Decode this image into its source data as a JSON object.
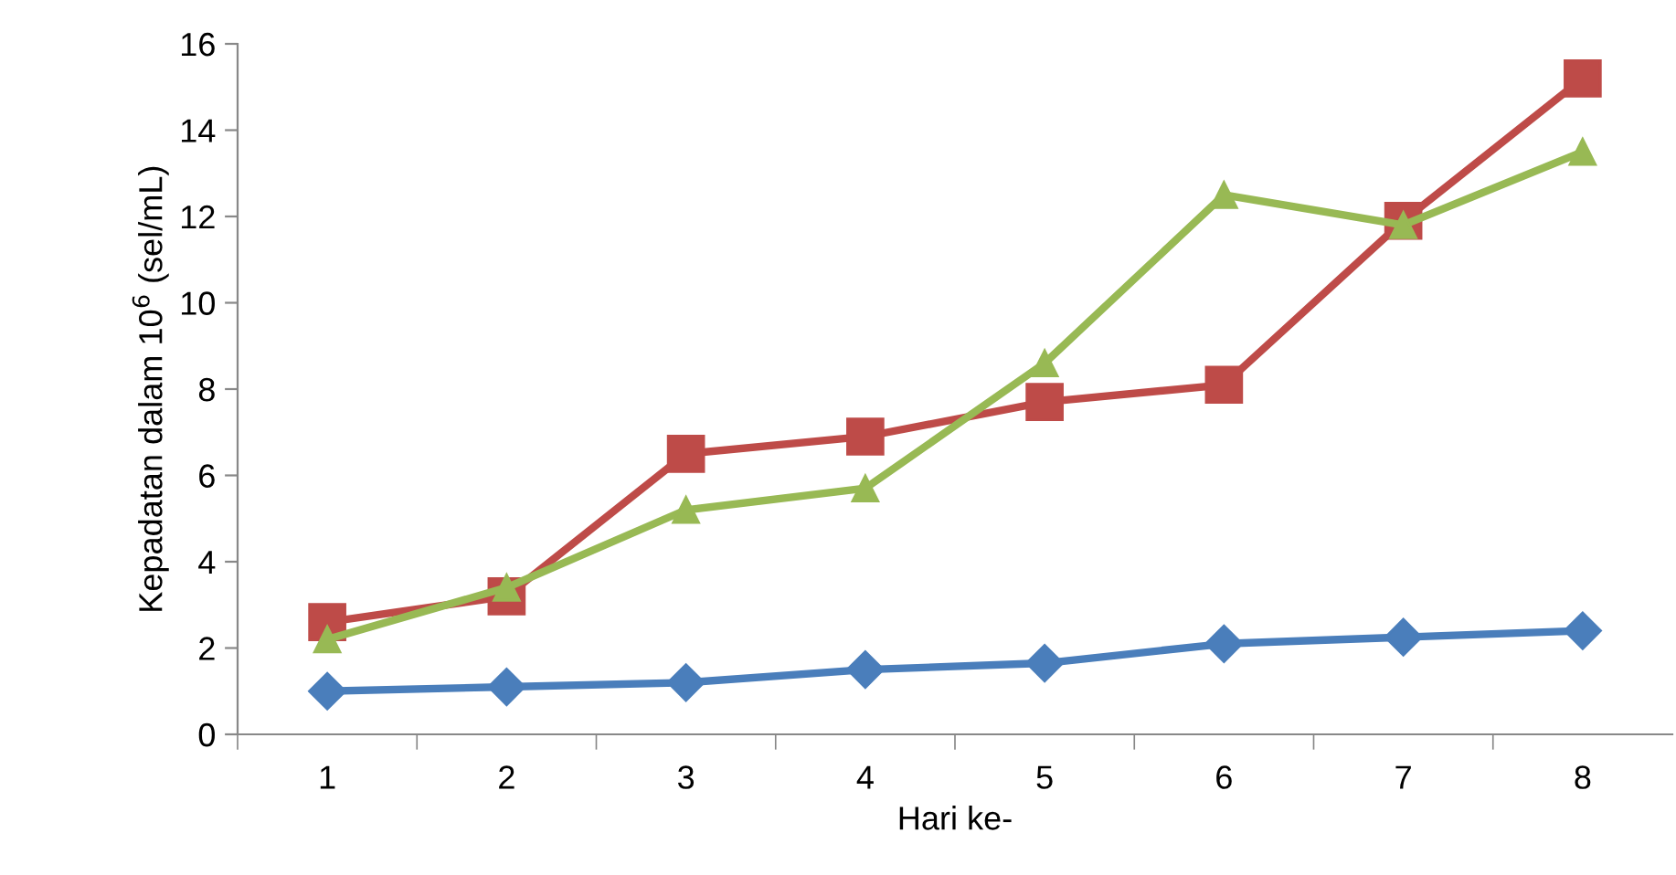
{
  "chart_data": {
    "type": "line",
    "xlabel": "Hari ke-",
    "ylabel": "Kepadatan dalam 10$^{6}$ (sel/mL)",
    "categories": [
      "1",
      "2",
      "3",
      "4",
      "5",
      "6",
      "7",
      "8"
    ],
    "ylim": [
      0,
      16
    ],
    "yticks": [
      0,
      2,
      4,
      6,
      8,
      10,
      12,
      14,
      16
    ],
    "grid": false,
    "legend": false,
    "line_style": "solid",
    "series": [
      {
        "color": "#4a7ebb",
        "marker": "diamond",
        "values": [
          1.0,
          1.1,
          1.2,
          1.5,
          1.65,
          2.1,
          2.25,
          2.4
        ]
      },
      {
        "color": "#be4b48",
        "marker": "square",
        "values": [
          2.6,
          3.2,
          6.5,
          6.9,
          7.7,
          8.1,
          11.9,
          15.2
        ]
      },
      {
        "color": "#98b954",
        "marker": "triangle",
        "values": [
          2.2,
          3.4,
          5.2,
          5.7,
          8.6,
          12.5,
          11.8,
          13.5
        ]
      }
    ]
  }
}
